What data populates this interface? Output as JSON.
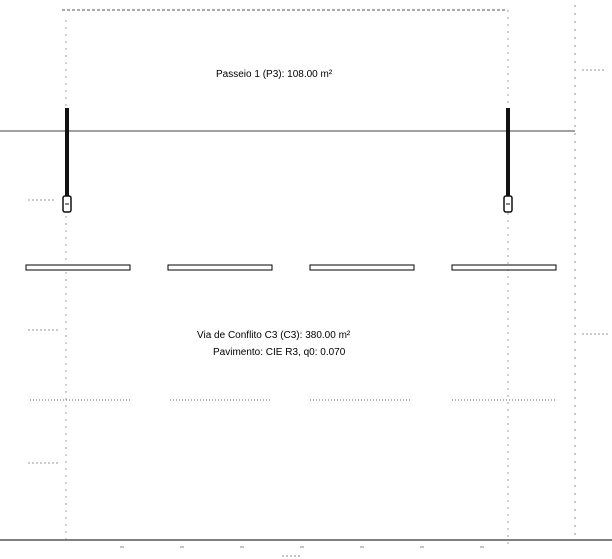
{
  "zones": {
    "upper": {
      "label": "Passeio 1 (P3): 108.00 m²"
    },
    "lower": {
      "label": "Via de Conflito C3 (C3): 380.00 m²",
      "pavement": "Pavimento: CIE R3, q0: 0.070"
    }
  },
  "colors": {
    "line": "#000000",
    "dotted": "#666666",
    "luminaire": "#111111"
  }
}
